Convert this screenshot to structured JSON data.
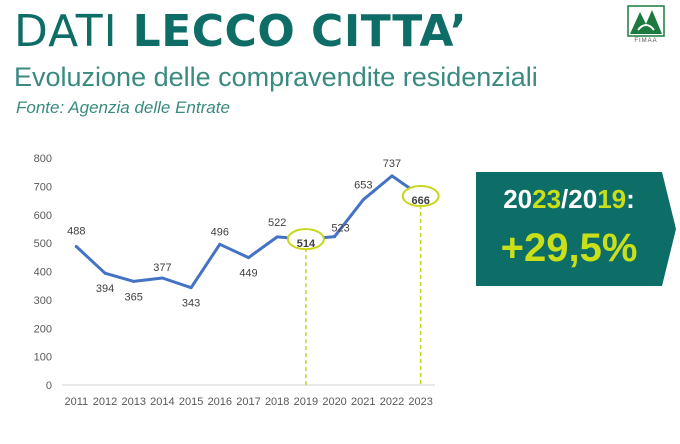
{
  "header": {
    "title_light": "DATI",
    "title_bold": "LECCO CITTA’",
    "subtitle": "Evoluzione delle compravendite residenziali",
    "source": "Fonte: Agenzia delle Entrate",
    "logo_text": "FIMAA"
  },
  "badge": {
    "year_a_prefix": "20",
    "year_a_suffix": "23",
    "separator": "/",
    "year_b_prefix": "20",
    "year_b_suffix": "19",
    "colon": ":",
    "value": "+29,5%",
    "bg_color": "#0d6e68",
    "highlight_color": "#c8df19"
  },
  "chart_data": {
    "type": "line",
    "x": [
      "2011",
      "2012",
      "2013",
      "2014",
      "2015",
      "2016",
      "2017",
      "2018",
      "2019",
      "2020",
      "2021",
      "2022",
      "2023"
    ],
    "series": [
      {
        "values": [
          488,
          394,
          365,
          377,
          343,
          496,
          449,
          522,
          514,
          523,
          653,
          737,
          666
        ]
      }
    ],
    "data_labels": [
      "488",
      "394",
      "365",
      "377",
      "343",
      "496",
      "449",
      "522",
      "514",
      "523",
      "653",
      "737",
      "666"
    ],
    "highlighted": [
      "2019",
      "2023"
    ],
    "y_ticks": [
      0,
      100,
      200,
      300,
      400,
      500,
      600,
      700,
      800
    ],
    "ylim": [
      0,
      800
    ],
    "grid": false,
    "line_color": "#4472c4",
    "highlight_color": "#c8d61e",
    "title": "",
    "xlabel": "",
    "ylabel": ""
  }
}
